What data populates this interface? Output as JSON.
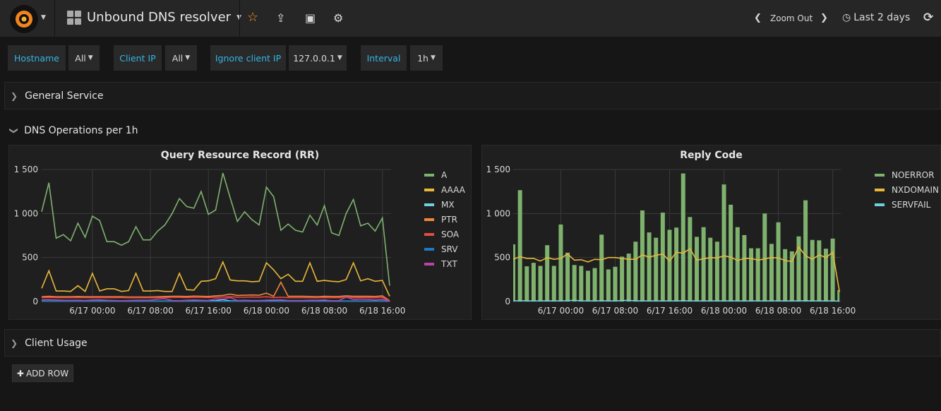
{
  "header": {
    "title": "Unbound DNS resolver",
    "zoom_out": "Zoom Out",
    "time_range": "Last 2 days"
  },
  "variables": [
    {
      "label": "Hostname",
      "value": "All"
    },
    {
      "label": "Client IP",
      "value": "All"
    },
    {
      "label": "Ignore client IP",
      "value": "127.0.0.1"
    },
    {
      "label": "Interval",
      "value": "1h"
    }
  ],
  "rows": {
    "general": "General Service",
    "dns_ops": "DNS Operations per 1h",
    "client": "Client Usage",
    "add_row": "ADD ROW"
  },
  "chart_data": [
    {
      "type": "line",
      "title": "Query Resource Record (RR)",
      "start": "6/16 17:00",
      "interval": "1h",
      "ylim": [
        0,
        1500
      ],
      "yticks": [
        "0",
        "500",
        "1 000",
        "1 500"
      ],
      "ytick_values": [
        0,
        500,
        1000,
        1500
      ],
      "xticks": [
        {
          "i": 7,
          "label": "6/17 00:00"
        },
        {
          "i": 15,
          "label": "6/17 08:00"
        },
        {
          "i": 23,
          "label": "6/17 16:00"
        },
        {
          "i": 31,
          "label": "6/18 00:00"
        },
        {
          "i": 39,
          "label": "6/18 08:00"
        },
        {
          "i": 47,
          "label": "6/18 16:00"
        }
      ],
      "legend": "right",
      "series": [
        {
          "name": "A",
          "color": "#7eb26d",
          "values": [
            1020,
            1350,
            720,
            760,
            690,
            890,
            730,
            970,
            920,
            680,
            680,
            640,
            680,
            850,
            700,
            700,
            800,
            870,
            1000,
            1170,
            1080,
            1060,
            1250,
            990,
            1040,
            1460,
            1180,
            910,
            1020,
            930,
            870,
            1300,
            1190,
            810,
            880,
            810,
            790,
            980,
            870,
            1090,
            780,
            750,
            1000,
            1160,
            860,
            890,
            800,
            950,
            180
          ]
        },
        {
          "name": "AAAA",
          "color": "#eab839",
          "values": [
            150,
            350,
            120,
            120,
            115,
            180,
            115,
            320,
            120,
            145,
            145,
            115,
            125,
            320,
            120,
            120,
            125,
            115,
            115,
            320,
            135,
            130,
            230,
            235,
            260,
            450,
            245,
            235,
            235,
            225,
            230,
            440,
            360,
            260,
            310,
            230,
            230,
            440,
            230,
            240,
            230,
            225,
            250,
            440,
            235,
            260,
            230,
            240,
            60
          ]
        },
        {
          "name": "MX",
          "color": "#6ed0e0",
          "values": [
            5,
            5,
            4,
            4,
            4,
            5,
            4,
            4,
            5,
            4,
            4,
            4,
            4,
            4,
            4,
            4,
            5,
            5,
            5,
            5,
            5,
            5,
            5,
            5,
            10,
            20,
            8,
            5,
            5,
            5,
            5,
            6,
            5,
            5,
            5,
            5,
            5,
            5,
            5,
            5,
            5,
            5,
            5,
            5,
            5,
            5,
            5,
            5,
            2
          ]
        },
        {
          "name": "PTR",
          "color": "#ef843c",
          "values": [
            55,
            60,
            55,
            55,
            55,
            58,
            55,
            55,
            55,
            55,
            55,
            55,
            52,
            52,
            52,
            52,
            55,
            58,
            60,
            60,
            58,
            62,
            60,
            58,
            65,
            70,
            85,
            70,
            72,
            75,
            72,
            95,
            60,
            220,
            60,
            60,
            60,
            58,
            55,
            60,
            58,
            58,
            65,
            60,
            60,
            60,
            58,
            65,
            10
          ]
        },
        {
          "name": "SOA",
          "color": "#e24d42",
          "values": [
            45,
            48,
            45,
            45,
            45,
            46,
            45,
            45,
            45,
            45,
            45,
            45,
            44,
            44,
            44,
            44,
            45,
            46,
            48,
            48,
            46,
            48,
            48,
            46,
            50,
            52,
            55,
            50,
            50,
            52,
            50,
            55,
            45,
            50,
            45,
            45,
            45,
            44,
            44,
            46,
            44,
            44,
            50,
            46,
            46,
            46,
            44,
            48,
            8
          ]
        },
        {
          "name": "SRV",
          "color": "#1f78c1",
          "values": [
            2,
            2,
            2,
            2,
            2,
            2,
            2,
            2,
            2,
            2,
            2,
            2,
            2,
            2,
            2,
            2,
            2,
            2,
            2,
            2,
            2,
            2,
            2,
            2,
            2,
            2,
            2,
            2,
            2,
            2,
            2,
            2,
            2,
            2,
            2,
            2,
            2,
            2,
            2,
            2,
            2,
            2,
            2,
            2,
            2,
            2,
            2,
            2,
            1
          ]
        },
        {
          "name": "TXT",
          "color": "#ba43a9",
          "values": [
            20,
            22,
            18,
            15,
            14,
            15,
            12,
            18,
            20,
            15,
            12,
            10,
            12,
            15,
            15,
            15,
            28,
            32,
            12,
            10,
            15,
            18,
            15,
            12,
            30,
            28,
            45,
            12,
            15,
            12,
            12,
            15,
            18,
            20,
            12,
            12,
            12,
            15,
            15,
            18,
            10,
            10,
            50,
            25,
            28,
            25,
            18,
            25,
            5
          ]
        }
      ]
    },
    {
      "type": "bar",
      "title": "Reply Code",
      "start": "6/16 17:00",
      "interval": "1h",
      "ylim": [
        0,
        1500
      ],
      "yticks": [
        "0",
        "500",
        "1 000",
        "1 500"
      ],
      "ytick_values": [
        0,
        500,
        1000,
        1500
      ],
      "xticks": [
        {
          "i": 7,
          "label": "6/17 00:00"
        },
        {
          "i": 15,
          "label": "6/17 08:00"
        },
        {
          "i": 23,
          "label": "6/17 16:00"
        },
        {
          "i": 31,
          "label": "6/18 00:00"
        },
        {
          "i": 39,
          "label": "6/18 08:00"
        },
        {
          "i": 47,
          "label": "6/18 16:00"
        }
      ],
      "legend": "right",
      "series": [
        {
          "name": "NOERROR",
          "color": "#7eb26d",
          "style": "bars",
          "values": [
            650,
            1265,
            400,
            440,
            405,
            640,
            405,
            875,
            555,
            415,
            405,
            350,
            380,
            760,
            365,
            395,
            510,
            545,
            680,
            1035,
            785,
            725,
            1010,
            815,
            840,
            1455,
            960,
            735,
            845,
            725,
            680,
            1330,
            1100,
            845,
            755,
            605,
            605,
            1000,
            655,
            900,
            595,
            570,
            740,
            1150,
            700,
            695,
            600,
            715,
            130
          ]
        },
        {
          "name": "NXDOMAIN",
          "color": "#eab839",
          "style": "line",
          "values": [
            480,
            510,
            490,
            490,
            460,
            500,
            480,
            490,
            540,
            470,
            475,
            450,
            480,
            475,
            500,
            500,
            490,
            480,
            480,
            530,
            505,
            525,
            540,
            460,
            560,
            550,
            600,
            470,
            485,
            500,
            495,
            520,
            505,
            465,
            490,
            490,
            470,
            485,
            500,
            495,
            465,
            455,
            620,
            520,
            480,
            530,
            500,
            560,
            110
          ]
        },
        {
          "name": "SERVFAIL",
          "color": "#6ed0e0",
          "style": "line",
          "values": [
            8,
            10,
            8,
            8,
            8,
            9,
            8,
            8,
            10,
            15,
            8,
            8,
            8,
            10,
            8,
            8,
            12,
            14,
            8,
            8,
            8,
            8,
            8,
            8,
            8,
            10,
            8,
            8,
            8,
            8,
            8,
            8,
            8,
            8,
            8,
            8,
            8,
            8,
            8,
            8,
            8,
            8,
            8,
            10,
            8,
            8,
            8,
            8,
            4
          ]
        }
      ]
    }
  ]
}
